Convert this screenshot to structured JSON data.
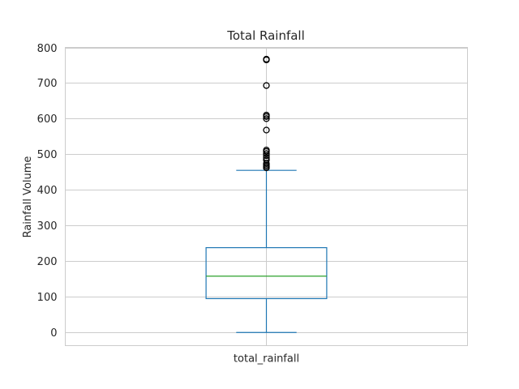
{
  "chart_data": {
    "type": "box",
    "title": "Total Rainfall",
    "ylabel": "Rainfall Volume",
    "xlabel": "",
    "ylim": [
      -37,
      800
    ],
    "yticks": [
      0,
      100,
      200,
      300,
      400,
      500,
      600,
      700,
      800
    ],
    "grid": true,
    "categories": [
      "total_rainfall"
    ],
    "boxes": [
      {
        "name": "total_rainfall",
        "whisker_low": 0,
        "q1": 95,
        "median": 158,
        "q3": 238,
        "whisker_high": 455,
        "outliers": [
          462,
          466,
          470,
          474,
          484,
          490,
          496,
          502,
          508,
          512,
          568,
          600,
          606,
          610,
          693,
          765,
          767
        ]
      }
    ],
    "colors": {
      "box": "#1f77b4",
      "median": "#2ca02c",
      "outlier": "#000000",
      "grid": "#cccccc",
      "frame": "#cccccc"
    }
  }
}
